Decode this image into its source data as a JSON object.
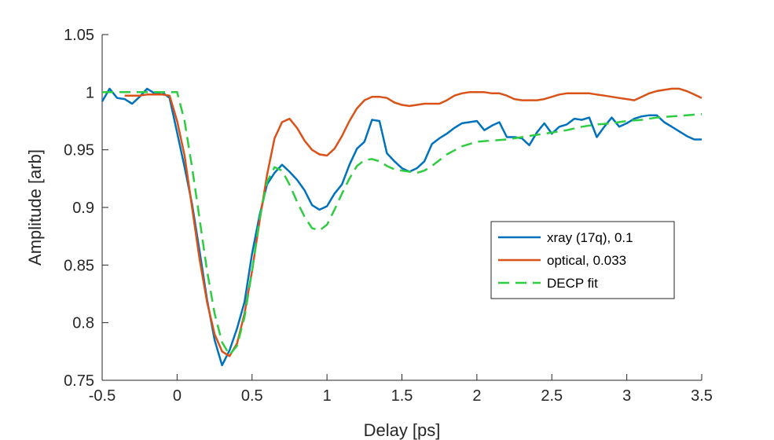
{
  "chart_data": {
    "type": "line",
    "xlabel": "Delay [ps]",
    "ylabel": "Amplitude [arb]",
    "xlim": [
      -0.5,
      3.5
    ],
    "ylim": [
      0.75,
      1.05
    ],
    "xticks": [
      -0.5,
      0,
      0.5,
      1,
      1.5,
      2,
      2.5,
      3,
      3.5
    ],
    "xtick_labels": [
      "-0.5",
      "0",
      "0.5",
      "1",
      "1.5",
      "2",
      "2.5",
      "3",
      "3.5"
    ],
    "yticks": [
      0.75,
      0.8,
      0.85,
      0.9,
      0.95,
      1.0,
      1.05
    ],
    "ytick_labels": [
      "0.75",
      "0.8",
      "0.85",
      "0.9",
      "0.95",
      "1",
      "1.05"
    ],
    "grid": false,
    "legend_position": "center-right",
    "series": [
      {
        "name": "xray (17q), 0.1",
        "color": "#0072BD",
        "dash": "solid",
        "x": [
          -0.5,
          -0.45,
          -0.4,
          -0.35,
          -0.3,
          -0.25,
          -0.2,
          -0.15,
          -0.1,
          -0.05,
          0,
          0.05,
          0.1,
          0.15,
          0.2,
          0.25,
          0.3,
          0.35,
          0.4,
          0.45,
          0.5,
          0.55,
          0.6,
          0.65,
          0.7,
          0.75,
          0.8,
          0.85,
          0.9,
          0.95,
          1.0,
          1.05,
          1.1,
          1.15,
          1.2,
          1.25,
          1.3,
          1.35,
          1.4,
          1.45,
          1.5,
          1.55,
          1.6,
          1.65,
          1.7,
          1.75,
          1.8,
          1.85,
          1.9,
          1.95,
          2.0,
          2.05,
          2.1,
          2.15,
          2.2,
          2.25,
          2.3,
          2.35,
          2.4,
          2.45,
          2.5,
          2.55,
          2.6,
          2.65,
          2.7,
          2.75,
          2.8,
          2.85,
          2.9,
          2.95,
          3.0,
          3.05,
          3.1,
          3.15,
          3.2,
          3.25,
          3.3,
          3.35,
          3.4,
          3.45,
          3.5
        ],
        "values": [
          0.992,
          1.003,
          0.995,
          0.994,
          0.99,
          0.996,
          1.003,
          0.999,
          1.0,
          0.995,
          0.965,
          0.935,
          0.903,
          0.862,
          0.82,
          0.785,
          0.763,
          0.776,
          0.795,
          0.818,
          0.86,
          0.893,
          0.92,
          0.93,
          0.937,
          0.931,
          0.924,
          0.915,
          0.902,
          0.898,
          0.901,
          0.912,
          0.92,
          0.937,
          0.951,
          0.957,
          0.976,
          0.975,
          0.947,
          0.94,
          0.934,
          0.931,
          0.934,
          0.94,
          0.955,
          0.96,
          0.964,
          0.969,
          0.973,
          0.974,
          0.975,
          0.967,
          0.971,
          0.974,
          0.961,
          0.961,
          0.96,
          0.954,
          0.965,
          0.973,
          0.964,
          0.97,
          0.972,
          0.977,
          0.976,
          0.978,
          0.961,
          0.97,
          0.978,
          0.97,
          0.973,
          0.977,
          0.979,
          0.98,
          0.98,
          0.974,
          0.97,
          0.966,
          0.962,
          0.959,
          0.959
        ]
      },
      {
        "name": "optical, 0.033",
        "color": "#D95319",
        "dash": "solid",
        "x": [
          -0.35,
          -0.3,
          -0.25,
          -0.2,
          -0.15,
          -0.1,
          -0.05,
          0,
          0.05,
          0.1,
          0.15,
          0.2,
          0.25,
          0.3,
          0.35,
          0.4,
          0.45,
          0.5,
          0.55,
          0.6,
          0.65,
          0.7,
          0.75,
          0.8,
          0.85,
          0.9,
          0.95,
          1.0,
          1.05,
          1.1,
          1.15,
          1.2,
          1.25,
          1.3,
          1.35,
          1.4,
          1.45,
          1.5,
          1.55,
          1.6,
          1.65,
          1.7,
          1.75,
          1.8,
          1.85,
          1.9,
          1.95,
          2.0,
          2.05,
          2.1,
          2.15,
          2.2,
          2.25,
          2.3,
          2.35,
          2.4,
          2.45,
          2.5,
          2.55,
          2.6,
          2.65,
          2.7,
          2.75,
          2.8,
          2.85,
          2.9,
          2.95,
          3.0,
          3.05,
          3.1,
          3.15,
          3.2,
          3.25,
          3.3,
          3.35,
          3.4,
          3.45,
          3.5
        ],
        "values": [
          0.997,
          0.997,
          0.997,
          0.998,
          0.998,
          0.998,
          0.997,
          0.975,
          0.945,
          0.9,
          0.855,
          0.818,
          0.79,
          0.775,
          0.771,
          0.782,
          0.808,
          0.845,
          0.888,
          0.928,
          0.96,
          0.974,
          0.977,
          0.969,
          0.958,
          0.95,
          0.946,
          0.945,
          0.951,
          0.962,
          0.975,
          0.986,
          0.993,
          0.996,
          0.996,
          0.995,
          0.991,
          0.989,
          0.988,
          0.989,
          0.99,
          0.99,
          0.99,
          0.993,
          0.997,
          0.999,
          1.0,
          1.0,
          1.0,
          0.999,
          0.999,
          0.997,
          0.994,
          0.993,
          0.993,
          0.993,
          0.994,
          0.996,
          0.998,
          0.999,
          0.999,
          0.999,
          0.999,
          0.998,
          0.997,
          0.996,
          0.995,
          0.994,
          0.993,
          0.996,
          0.999,
          1.001,
          1.002,
          1.003,
          1.003,
          1.001,
          0.998,
          0.995
        ]
      },
      {
        "name": "DECP fit",
        "color": "#2ECC40",
        "dash": "dashed",
        "x": [
          -0.5,
          -0.4,
          -0.3,
          -0.2,
          -0.1,
          -0.05,
          0.0,
          0.05,
          0.1,
          0.15,
          0.2,
          0.25,
          0.3,
          0.35,
          0.4,
          0.45,
          0.5,
          0.55,
          0.6,
          0.65,
          0.7,
          0.75,
          0.8,
          0.85,
          0.9,
          0.95,
          1.0,
          1.05,
          1.1,
          1.15,
          1.2,
          1.25,
          1.3,
          1.35,
          1.4,
          1.45,
          1.5,
          1.55,
          1.6,
          1.65,
          1.7,
          1.8,
          1.9,
          2.0,
          2.1,
          2.2,
          2.3,
          2.4,
          2.5,
          2.6,
          2.7,
          2.8,
          2.9,
          3.0,
          3.1,
          3.2,
          3.3,
          3.4,
          3.5
        ],
        "values": [
          1.0,
          1.0,
          1.0,
          1.0,
          1.0,
          1.0,
          1.0,
          0.975,
          0.935,
          0.89,
          0.845,
          0.808,
          0.783,
          0.772,
          0.78,
          0.805,
          0.845,
          0.89,
          0.922,
          0.935,
          0.932,
          0.92,
          0.905,
          0.892,
          0.882,
          0.88,
          0.885,
          0.898,
          0.912,
          0.925,
          0.936,
          0.941,
          0.942,
          0.94,
          0.936,
          0.933,
          0.932,
          0.931,
          0.93,
          0.932,
          0.936,
          0.946,
          0.953,
          0.957,
          0.958,
          0.959,
          0.961,
          0.963,
          0.965,
          0.967,
          0.97,
          0.972,
          0.973,
          0.975,
          0.976,
          0.978,
          0.979,
          0.98,
          0.981
        ]
      }
    ]
  }
}
